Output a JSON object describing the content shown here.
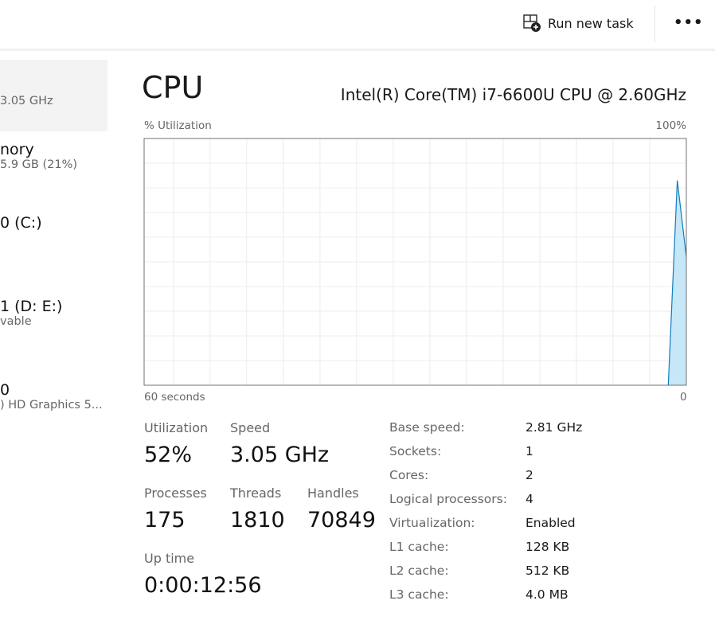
{
  "toolbar": {
    "run_new_task": "Run new task",
    "more_icon": "ellipsis-icon",
    "run_icon": "run-task-icon"
  },
  "sidebar": {
    "items": [
      {
        "name": "",
        "sub": "3.05 GHz",
        "selected": true
      },
      {
        "name": "nory",
        "sub": "5.9 GB (21%)"
      },
      {
        "name": "0 (C:)",
        "sub": ""
      },
      {
        "name": "1 (D: E:)",
        "sub": "vable"
      },
      {
        "name": "0",
        "sub": ") HD Graphics 5..."
      }
    ]
  },
  "main": {
    "title": "CPU",
    "model": "Intel(R) Core(TM) i7-6600U CPU @ 2.60GHz",
    "graph": {
      "ylabel": "% Utilization",
      "ymax_label": "100%",
      "xlabel_left": "60 seconds",
      "xlabel_right": "0"
    },
    "stats": {
      "utilization_label": "Utilization",
      "utilization": "52%",
      "speed_label": "Speed",
      "speed": "3.05 GHz",
      "processes_label": "Processes",
      "processes": "175",
      "threads_label": "Threads",
      "threads": "1810",
      "handles_label": "Handles",
      "handles": "70849",
      "uptime_label": "Up time",
      "uptime": "0:00:12:56"
    },
    "details": [
      {
        "k": "Base speed:",
        "v": "2.81 GHz"
      },
      {
        "k": "Sockets:",
        "v": "1"
      },
      {
        "k": "Cores:",
        "v": "2"
      },
      {
        "k": "Logical processors:",
        "v": "4"
      },
      {
        "k": "Virtualization:",
        "v": "Enabled"
      },
      {
        "k": "L1 cache:",
        "v": "128 KB"
      },
      {
        "k": "L2 cache:",
        "v": "512 KB"
      },
      {
        "k": "L3 cache:",
        "v": "4.0 MB"
      }
    ]
  },
  "chart_data": {
    "type": "area",
    "ylabel": "% Utilization",
    "xlim": [
      -60,
      0
    ],
    "ylim": [
      0,
      100
    ],
    "grid": true,
    "x": [
      -2,
      -1,
      0
    ],
    "values": [
      0,
      83,
      52
    ],
    "colors": {
      "line": "#117dbb",
      "fill": "#c5e7f7",
      "grid": "#ececec",
      "border": "#707070"
    }
  }
}
